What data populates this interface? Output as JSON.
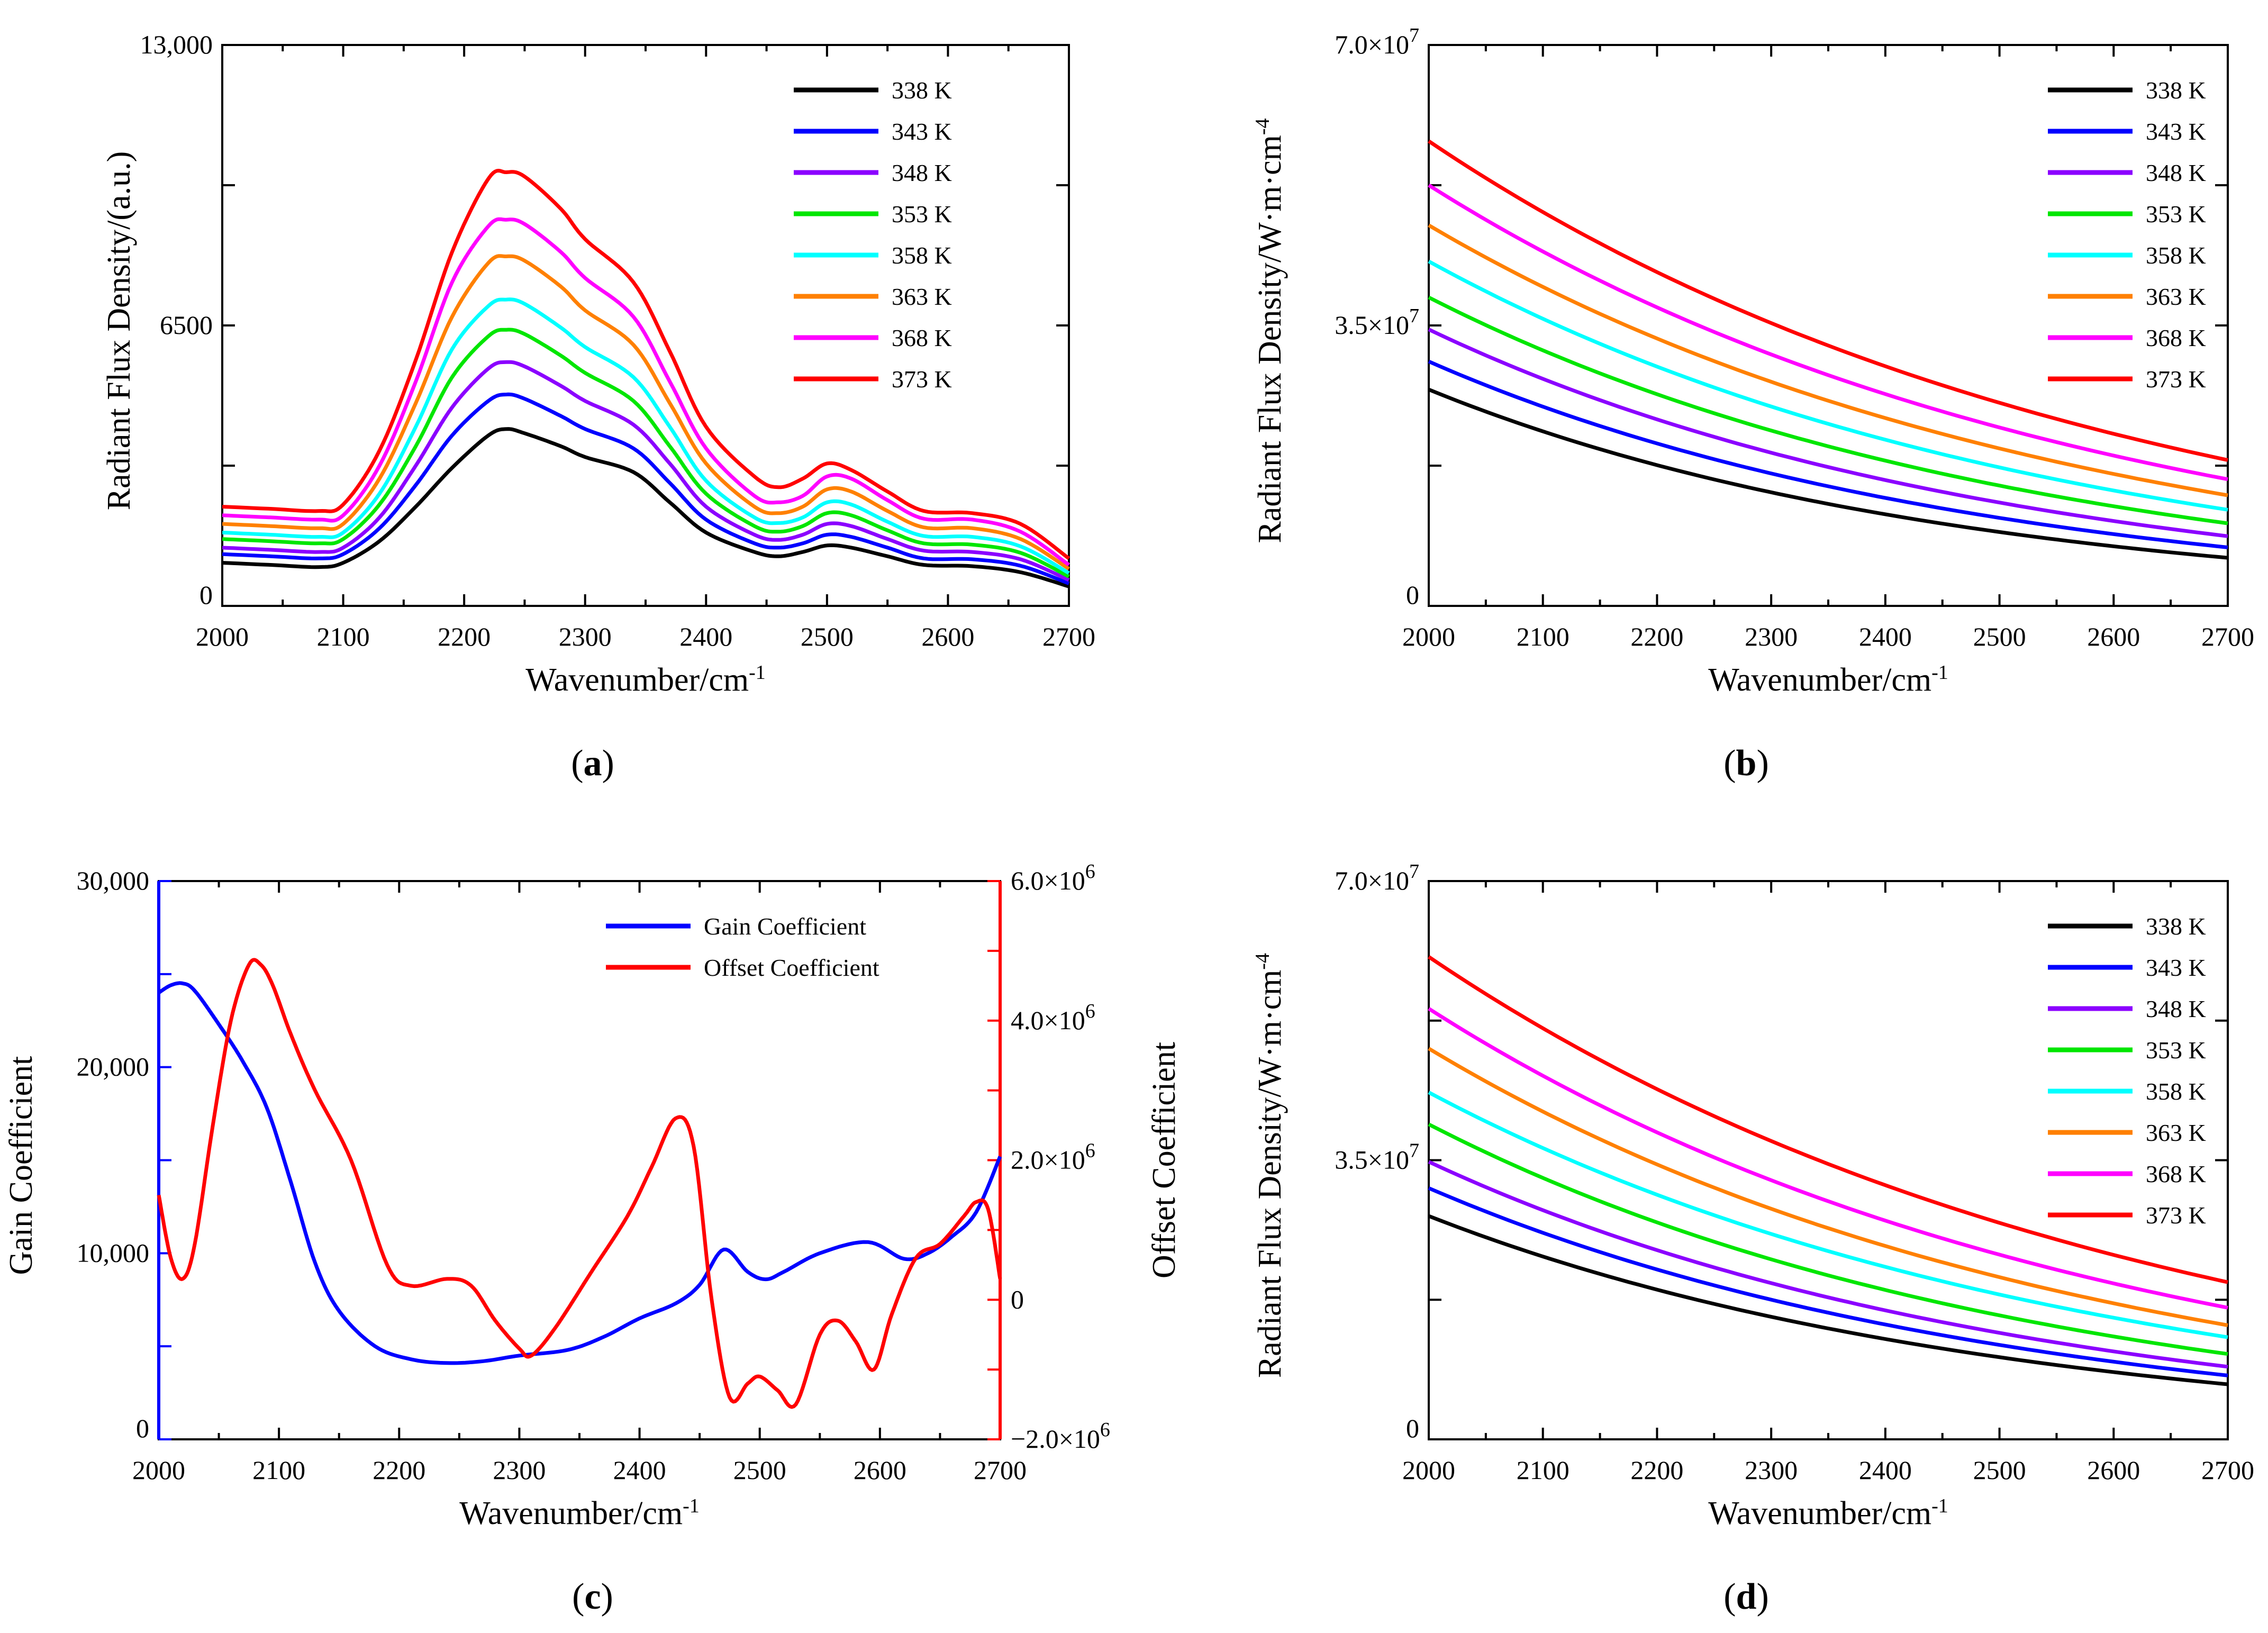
{
  "chart_data": [
    {
      "panel": "a",
      "type": "line",
      "caption_letter": "a",
      "xlabel": "Wavenumber/cm",
      "xlabel_sup": "-1",
      "ylabel": "Radiant Flux Density/(a.u.)",
      "xlim": [
        2000,
        2700
      ],
      "ylim": [
        0,
        13000
      ],
      "xticks": [
        2000,
        2100,
        2200,
        2300,
        2400,
        2500,
        2600,
        2700
      ],
      "yticks": [
        {
          "value": 0,
          "label": "0"
        },
        {
          "value": 6500,
          "label": "6500"
        },
        {
          "value": 13000,
          "label": "13,000"
        }
      ],
      "legend": "top-right",
      "series": [
        {
          "name": "338 K",
          "color": "#000000",
          "x": [
            2000,
            2040,
            2080,
            2100,
            2130,
            2160,
            2190,
            2220,
            2235,
            2250,
            2280,
            2300,
            2340,
            2370,
            2400,
            2440,
            2460,
            2480,
            2500,
            2520,
            2550,
            2580,
            2620,
            2660,
            2700
          ],
          "values": [
            1000,
            950,
            900,
            1000,
            1500,
            2300,
            3200,
            3950,
            4100,
            4000,
            3700,
            3450,
            3100,
            2400,
            1700,
            1250,
            1150,
            1250,
            1400,
            1350,
            1150,
            950,
            920,
            780,
            450
          ]
        },
        {
          "name": "343 K",
          "color": "#0000ff",
          "x": [
            2000,
            2040,
            2080,
            2100,
            2130,
            2160,
            2190,
            2220,
            2235,
            2250,
            2280,
            2300,
            2340,
            2370,
            2400,
            2440,
            2460,
            2480,
            2500,
            2520,
            2550,
            2580,
            2620,
            2660,
            2700
          ],
          "values": [
            1200,
            1150,
            1100,
            1200,
            1800,
            2800,
            3950,
            4750,
            4900,
            4800,
            4400,
            4100,
            3650,
            2850,
            2000,
            1450,
            1350,
            1450,
            1650,
            1600,
            1350,
            1100,
            1080,
            930,
            520
          ]
        },
        {
          "name": "348 K",
          "color": "#8b00ff",
          "x": [
            2000,
            2040,
            2080,
            2100,
            2130,
            2160,
            2190,
            2220,
            2235,
            2250,
            2280,
            2300,
            2340,
            2370,
            2400,
            2440,
            2460,
            2480,
            2500,
            2520,
            2550,
            2580,
            2620,
            2660,
            2700
          ],
          "values": [
            1350,
            1300,
            1250,
            1350,
            2050,
            3250,
            4600,
            5500,
            5650,
            5550,
            5100,
            4750,
            4200,
            3300,
            2300,
            1650,
            1530,
            1650,
            1900,
            1850,
            1550,
            1280,
            1250,
            1080,
            600
          ]
        },
        {
          "name": "353 K",
          "color": "#00e600",
          "x": [
            2000,
            2040,
            2080,
            2100,
            2130,
            2160,
            2190,
            2220,
            2235,
            2250,
            2280,
            2300,
            2340,
            2370,
            2400,
            2440,
            2460,
            2480,
            2500,
            2520,
            2550,
            2580,
            2620,
            2660,
            2700
          ],
          "values": [
            1550,
            1500,
            1450,
            1550,
            2350,
            3700,
            5300,
            6250,
            6400,
            6300,
            5800,
            5400,
            4750,
            3700,
            2600,
            1850,
            1720,
            1850,
            2150,
            2100,
            1750,
            1450,
            1420,
            1230,
            680
          ]
        },
        {
          "name": "358 K",
          "color": "#00ffff",
          "x": [
            2000,
            2040,
            2080,
            2100,
            2130,
            2160,
            2190,
            2220,
            2235,
            2250,
            2280,
            2300,
            2340,
            2370,
            2400,
            2440,
            2460,
            2480,
            2500,
            2520,
            2550,
            2580,
            2620,
            2660,
            2700
          ],
          "values": [
            1700,
            1650,
            1600,
            1700,
            2600,
            4150,
            5950,
            6950,
            7100,
            7000,
            6450,
            6000,
            5300,
            4150,
            2900,
            2050,
            1920,
            2050,
            2400,
            2350,
            1950,
            1620,
            1600,
            1380,
            760
          ]
        },
        {
          "name": "363 K",
          "color": "#ff8000",
          "x": [
            2000,
            2040,
            2080,
            2100,
            2130,
            2160,
            2190,
            2220,
            2235,
            2250,
            2280,
            2300,
            2340,
            2370,
            2400,
            2440,
            2460,
            2480,
            2500,
            2520,
            2550,
            2580,
            2620,
            2660,
            2700
          ],
          "values": [
            1900,
            1850,
            1800,
            1900,
            2950,
            4700,
            6700,
            7950,
            8100,
            8000,
            7400,
            6850,
            6050,
            4700,
            3300,
            2300,
            2150,
            2300,
            2700,
            2650,
            2200,
            1820,
            1800,
            1550,
            860
          ]
        },
        {
          "name": "368 K",
          "color": "#ff00ff",
          "x": [
            2000,
            2040,
            2080,
            2100,
            2130,
            2160,
            2190,
            2220,
            2235,
            2250,
            2280,
            2300,
            2340,
            2370,
            2400,
            2440,
            2460,
            2480,
            2500,
            2520,
            2550,
            2580,
            2620,
            2660,
            2700
          ],
          "values": [
            2100,
            2050,
            2000,
            2100,
            3250,
            5200,
            7500,
            8800,
            8950,
            8850,
            8200,
            7600,
            6700,
            5200,
            3650,
            2550,
            2400,
            2550,
            3000,
            2950,
            2450,
            2020,
            2000,
            1720,
            950
          ]
        },
        {
          "name": "373 K",
          "color": "#ff0000",
          "x": [
            2000,
            2040,
            2080,
            2100,
            2130,
            2160,
            2190,
            2220,
            2235,
            2250,
            2280,
            2300,
            2340,
            2370,
            2400,
            2440,
            2460,
            2480,
            2500,
            2520,
            2550,
            2580,
            2620,
            2660,
            2700
          ],
          "values": [
            2300,
            2250,
            2200,
            2350,
            3600,
            5700,
            8200,
            9900,
            10050,
            9950,
            9200,
            8500,
            7500,
            5900,
            4150,
            3000,
            2750,
            2950,
            3300,
            3150,
            2650,
            2200,
            2150,
            1900,
            1100
          ]
        }
      ]
    },
    {
      "panel": "b",
      "type": "line",
      "caption_letter": "b",
      "xlabel": "Wavenumber/cm",
      "xlabel_sup": "-1",
      "ylabel": "Radiant Flux Density/W·m·cm",
      "ylabel_sup": "-4",
      "xlim": [
        2000,
        2700
      ],
      "ylim": [
        0,
        70000000
      ],
      "xticks": [
        2000,
        2100,
        2200,
        2300,
        2400,
        2500,
        2600,
        2700
      ],
      "yticks": [
        {
          "value": 0,
          "label": "0",
          "sup": ""
        },
        {
          "value": 35000000,
          "label": "3.5×10",
          "sup": "7"
        },
        {
          "value": 70000000,
          "label": "7.0×10",
          "sup": "7"
        }
      ],
      "legend": "top-right",
      "series": [
        {
          "name": "338 K",
          "color": "#000000",
          "start": 27000000,
          "end": 6000000
        },
        {
          "name": "343 K",
          "color": "#0000ff",
          "start": 30500000,
          "end": 7300000
        },
        {
          "name": "348 K",
          "color": "#8b00ff",
          "start": 34500000,
          "end": 8700000
        },
        {
          "name": "353 K",
          "color": "#00e600",
          "start": 38500000,
          "end": 10300000
        },
        {
          "name": "358 K",
          "color": "#00ffff",
          "start": 43000000,
          "end": 12000000
        },
        {
          "name": "363 K",
          "color": "#ff8000",
          "start": 47500000,
          "end": 13800000
        },
        {
          "name": "368 K",
          "color": "#ff00ff",
          "start": 52500000,
          "end": 15800000
        },
        {
          "name": "373 K",
          "color": "#ff0000",
          "start": 58000000,
          "end": 18200000
        }
      ]
    },
    {
      "panel": "c",
      "type": "line",
      "caption_letter": "c",
      "xlabel": "Wavenumber/cm",
      "xlabel_sup": "-1",
      "ylabel": "Gain Coefficient",
      "ylabel_right": "Offset Coefficient",
      "xlim": [
        2000,
        2700
      ],
      "ylim": [
        0,
        30000
      ],
      "ylim_right": [
        -2000000,
        6000000
      ],
      "xticks": [
        2000,
        2100,
        2200,
        2300,
        2400,
        2500,
        2600,
        2700
      ],
      "yticks": [
        {
          "value": 0,
          "label": "0"
        },
        {
          "value": 10000,
          "label": "10,000"
        },
        {
          "value": 20000,
          "label": "20,000"
        },
        {
          "value": 30000,
          "label": "30,000"
        }
      ],
      "yticks_right": [
        {
          "value": -2000000,
          "label": "−2.0×10",
          "sup": "6"
        },
        {
          "value": 0,
          "label": "0",
          "sup": ""
        },
        {
          "value": 2000000,
          "label": "2.0×10",
          "sup": "6"
        },
        {
          "value": 4000000,
          "label": "4.0×10",
          "sup": "6"
        },
        {
          "value": 6000000,
          "label": "6.0×10",
          "sup": "6"
        }
      ],
      "legend": "top-right",
      "series": [
        {
          "name": "Gain Coefficient",
          "color": "#0000ff",
          "axis": "left",
          "x": [
            2000,
            2010,
            2020,
            2030,
            2050,
            2070,
            2090,
            2110,
            2130,
            2150,
            2180,
            2210,
            2240,
            2270,
            2300,
            2340,
            2370,
            2400,
            2430,
            2450,
            2470,
            2490,
            2505,
            2520,
            2550,
            2590,
            2620,
            2640,
            2660,
            2680,
            2700
          ],
          "values": [
            24000,
            24400,
            24500,
            24100,
            22300,
            20300,
            17800,
            13800,
            9500,
            6900,
            5000,
            4300,
            4100,
            4200,
            4500,
            4800,
            5500,
            6500,
            7300,
            8300,
            10200,
            9000,
            8600,
            9000,
            10000,
            10600,
            9700,
            10000,
            10900,
            12200,
            15200
          ]
        },
        {
          "name": "Offset Coefficient",
          "color": "#ff0000",
          "axis": "right",
          "x": [
            2000,
            2010,
            2020,
            2030,
            2045,
            2060,
            2075,
            2085,
            2095,
            2110,
            2130,
            2160,
            2190,
            2210,
            2240,
            2260,
            2280,
            2300,
            2310,
            2330,
            2360,
            2390,
            2410,
            2430,
            2445,
            2460,
            2475,
            2490,
            2500,
            2515,
            2530,
            2550,
            2565,
            2580,
            2595,
            2610,
            2630,
            2650,
            2670,
            2680,
            2690,
            2700
          ],
          "values": [
            1500000,
            600000,
            300000,
            800000,
            2500000,
            4000000,
            4800000,
            4800000,
            4500000,
            3800000,
            3000000,
            2000000,
            500000,
            200000,
            300000,
            200000,
            -300000,
            -700000,
            -800000,
            -400000,
            400000,
            1200000,
            1900000,
            2600000,
            2200000,
            0,
            -1400000,
            -1200000,
            -1100000,
            -1300000,
            -1500000,
            -500000,
            -300000,
            -600000,
            -1000000,
            -200000,
            600000,
            800000,
            1200000,
            1400000,
            1300000,
            300000
          ]
        }
      ]
    },
    {
      "panel": "d",
      "type": "line",
      "caption_letter": "d",
      "xlabel": "Wavenumber/cm",
      "xlabel_sup": "-1",
      "ylabel": "Radiant Flux Density/W·m·cm",
      "ylabel_sup": "-4",
      "xlim": [
        2000,
        2700
      ],
      "ylim": [
        0,
        70000000
      ],
      "xticks": [
        2000,
        2100,
        2200,
        2300,
        2400,
        2500,
        2600,
        2700
      ],
      "yticks": [
        {
          "value": 0,
          "label": "0",
          "sup": ""
        },
        {
          "value": 35000000,
          "label": "3.5×10",
          "sup": "7"
        },
        {
          "value": 70000000,
          "label": "7.0×10",
          "sup": "7"
        }
      ],
      "legend": "top-right",
      "series": [
        {
          "name": "338 K",
          "color": "#000000",
          "start": 28000000,
          "end": 6900000
        },
        {
          "name": "343 K",
          "color": "#0000ff",
          "start": 31500000,
          "end": 8000000
        },
        {
          "name": "348 K",
          "color": "#8b00ff",
          "start": 34800000,
          "end": 9100000
        },
        {
          "name": "353 K",
          "color": "#00e600",
          "start": 39500000,
          "end": 10700000
        },
        {
          "name": "358 K",
          "color": "#00ffff",
          "start": 43500000,
          "end": 12800000
        },
        {
          "name": "363 K",
          "color": "#ff8000",
          "start": 49000000,
          "end": 14300000
        },
        {
          "name": "368 K",
          "color": "#ff00ff",
          "start": 54000000,
          "end": 16500000
        },
        {
          "name": "373 K",
          "color": "#ff0000",
          "start": 60500000,
          "end": 19700000
        }
      ]
    }
  ]
}
